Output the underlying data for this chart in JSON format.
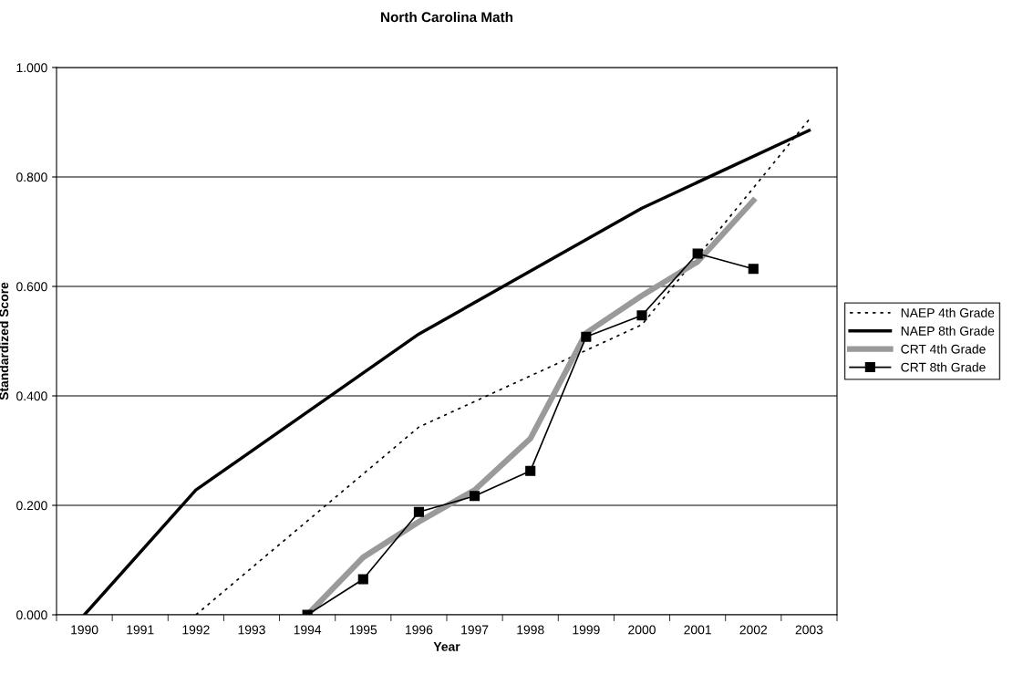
{
  "chart_data": {
    "type": "line",
    "title": "North Carolina Math",
    "xlabel": "Year",
    "ylabel": "Standardized Score",
    "categories": [
      "1990",
      "1991",
      "1992",
      "1993",
      "1994",
      "1995",
      "1996",
      "1997",
      "1998",
      "1999",
      "2000",
      "2001",
      "2002",
      "2003"
    ],
    "series": [
      {
        "name": "NAEP 4th Grade",
        "color": "#000000",
        "line_style": "dotted",
        "marker": "none",
        "values": [
          null,
          null,
          0.0,
          null,
          null,
          null,
          0.343,
          null,
          null,
          null,
          0.53,
          null,
          null,
          0.905
        ]
      },
      {
        "name": "NAEP 8th Grade",
        "color": "#000000",
        "line_style": "solid",
        "marker": "none",
        "values": [
          0.0,
          null,
          0.228,
          null,
          null,
          null,
          0.513,
          null,
          null,
          null,
          0.743,
          null,
          null,
          0.885
        ]
      },
      {
        "name": "CRT 4th Grade",
        "color": "#9a9a9a",
        "line_style": "solid",
        "marker": "none",
        "values": [
          null,
          null,
          null,
          null,
          0.0,
          0.105,
          0.17,
          0.228,
          0.322,
          0.515,
          0.583,
          0.645,
          0.757,
          null
        ]
      },
      {
        "name": "CRT 8th Grade",
        "color": "#000000",
        "line_style": "solid",
        "marker": "square",
        "values": [
          null,
          null,
          null,
          null,
          0.0,
          0.065,
          0.188,
          0.217,
          0.263,
          0.508,
          0.547,
          0.66,
          0.632,
          null
        ]
      }
    ],
    "ylim": [
      0,
      1
    ],
    "yticks": [
      {
        "value": 0,
        "label": "0.000"
      },
      {
        "value": 0.2,
        "label": "0.200"
      },
      {
        "value": 0.4,
        "label": "0.400"
      },
      {
        "value": 0.6,
        "label": "0.600"
      },
      {
        "value": 0.8,
        "label": "0.800"
      },
      {
        "value": 1,
        "label": "1.000"
      }
    ],
    "grid": "y",
    "legend": "right"
  }
}
